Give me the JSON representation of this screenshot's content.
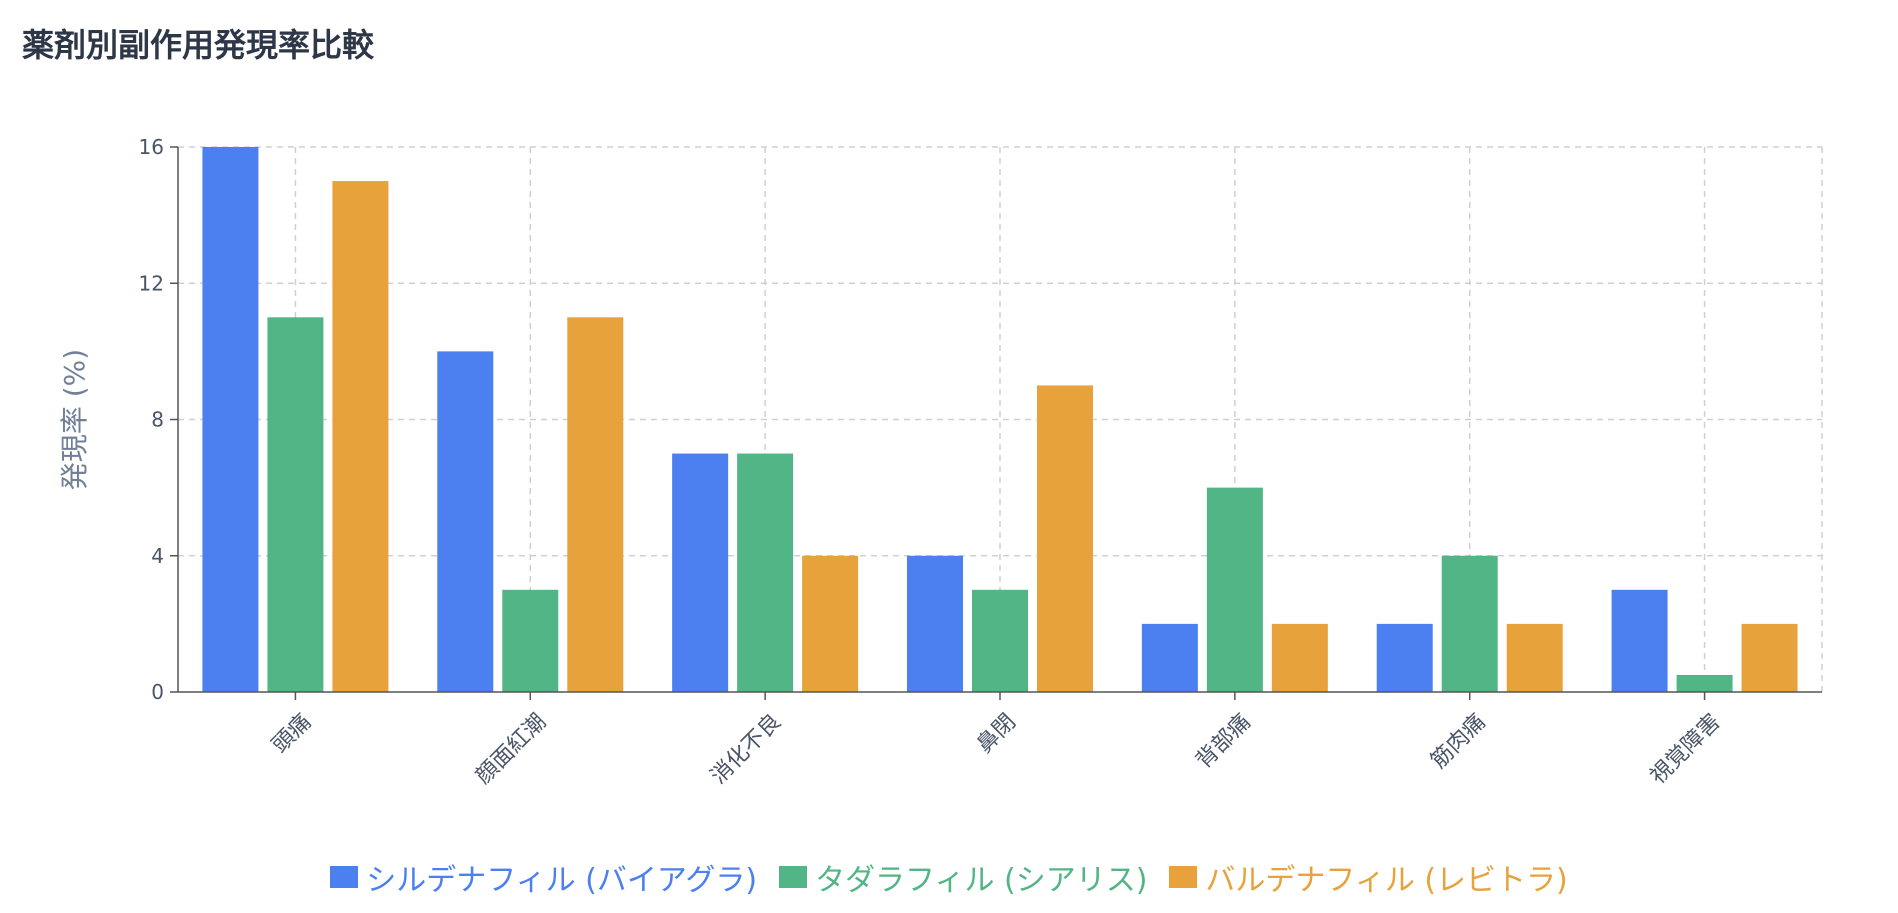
{
  "title": "薬剤別副作用発現率比較",
  "chart_data": {
    "type": "bar",
    "categories": [
      "頭痛",
      "顔面紅潮",
      "消化不良",
      "鼻閉",
      "背部痛",
      "筋肉痛",
      "視覚障害"
    ],
    "series": [
      {
        "name": "シルデナフィル (バイアグラ)",
        "color": "#4c80f0",
        "values": [
          16,
          10,
          7,
          4,
          2,
          2,
          3
        ]
      },
      {
        "name": "タダラフィル (シアリス)",
        "color": "#52b585",
        "values": [
          11,
          3,
          7,
          3,
          6,
          4,
          0.5
        ]
      },
      {
        "name": "バルデナフィル (レビトラ)",
        "color": "#e8a23b",
        "values": [
          15,
          11,
          4,
          9,
          2,
          2,
          2
        ]
      }
    ],
    "ylabel": "発現率 (%)",
    "xlabel": "",
    "ylim": [
      0,
      16
    ],
    "yticks": [
      0,
      4,
      8,
      12,
      16
    ],
    "grid": true,
    "legend_position": "bottom-center"
  }
}
